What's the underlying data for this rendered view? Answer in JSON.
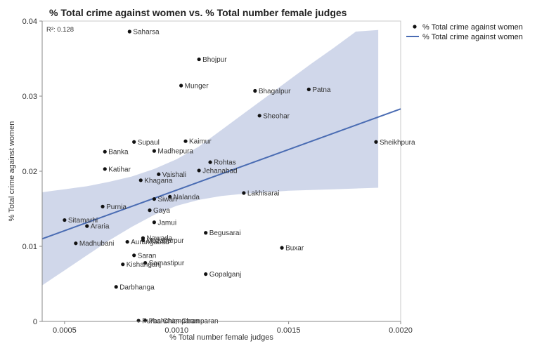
{
  "chart_data": {
    "type": "scatter",
    "title": "% Total crime against women vs. % Total number female judges",
    "xlabel": "% Total number female judges",
    "ylabel": "% Total crime against women",
    "xlim": [
      0.0004,
      0.002
    ],
    "ylim": [
      0,
      0.04
    ],
    "xticks": [
      "0.0005",
      "0.0010",
      "0.0015",
      "0.0020"
    ],
    "yticks": [
      "0",
      "0.01",
      "0.02",
      "0.03",
      "0.04"
    ],
    "r2_label": "R²: 0.128",
    "legend": {
      "position": "right",
      "items": [
        {
          "label": "% Total crime against women",
          "kind": "point"
        },
        {
          "label": "% Total crime against women",
          "kind": "line"
        }
      ]
    },
    "colors": {
      "points": "#111111",
      "fit_line": "#4a6cb3",
      "confidence_band": "#c8d0e6"
    },
    "fit": {
      "x": [
        0.0004,
        0.002
      ],
      "y": [
        0.011,
        0.0283
      ]
    },
    "confidence_band": {
      "x": [
        0.0004,
        0.00045,
        0.0005,
        0.00055,
        0.0006,
        0.0007,
        0.0008,
        0.0009,
        0.001,
        0.0011,
        0.0012,
        0.0013,
        0.0014,
        0.0015,
        0.0016,
        0.0017,
        0.0018,
        0.0019
      ],
      "upper": [
        0.0172,
        0.0174,
        0.0176,
        0.0178,
        0.018,
        0.0186,
        0.0193,
        0.0203,
        0.0216,
        0.0233,
        0.0255,
        0.0277,
        0.0299,
        0.0321,
        0.0343,
        0.0364,
        0.0386,
        0.0388
      ],
      "lower": [
        0.0048,
        0.0058,
        0.0068,
        0.0078,
        0.0088,
        0.0108,
        0.0126,
        0.0142,
        0.0154,
        0.0162,
        0.0167,
        0.017,
        0.0172,
        0.0174,
        0.0175,
        0.0176,
        0.0177,
        0.0178
      ]
    },
    "points": [
      {
        "label": "Saharsa",
        "x": 0.00079,
        "y": 0.0386
      },
      {
        "label": "Bhojpur",
        "x": 0.0011,
        "y": 0.0349
      },
      {
        "label": "Munger",
        "x": 0.00102,
        "y": 0.0314
      },
      {
        "label": "Bhagalpur",
        "x": 0.00135,
        "y": 0.0307
      },
      {
        "label": "Patna",
        "x": 0.00159,
        "y": 0.0309
      },
      {
        "label": "Sheohar",
        "x": 0.00137,
        "y": 0.0274
      },
      {
        "label": "Sheikhpura",
        "x": 0.00189,
        "y": 0.0239
      },
      {
        "label": "Supaul",
        "x": 0.00081,
        "y": 0.0239
      },
      {
        "label": "Kaimur",
        "x": 0.00104,
        "y": 0.024
      },
      {
        "label": "Banka",
        "x": 0.00068,
        "y": 0.0226
      },
      {
        "label": "Madhepura",
        "x": 0.0009,
        "y": 0.0227
      },
      {
        "label": "Rohtas",
        "x": 0.00115,
        "y": 0.0212
      },
      {
        "label": "Katihar",
        "x": 0.00068,
        "y": 0.0203
      },
      {
        "label": "Jehanabad",
        "x": 0.0011,
        "y": 0.0201
      },
      {
        "label": "Vaishali",
        "x": 0.00092,
        "y": 0.0196
      },
      {
        "label": "Khagaria",
        "x": 0.00084,
        "y": 0.0188
      },
      {
        "label": "Lakhisarai",
        "x": 0.0013,
        "y": 0.0171
      },
      {
        "label": "Nalanda",
        "x": 0.00097,
        "y": 0.0166
      },
      {
        "label": "Siwan",
        "x": 0.0009,
        "y": 0.0163
      },
      {
        "label": "Purnia",
        "x": 0.00067,
        "y": 0.0153
      },
      {
        "label": "Gaya",
        "x": 0.00088,
        "y": 0.0148
      },
      {
        "label": "Sitamarhi",
        "x": 0.0005,
        "y": 0.0135
      },
      {
        "label": "Jamui",
        "x": 0.0009,
        "y": 0.0132
      },
      {
        "label": "Araria",
        "x": 0.0006,
        "y": 0.0127
      },
      {
        "label": "Begusarai",
        "x": 0.00113,
        "y": 0.0118
      },
      {
        "label": "Nawada",
        "x": 0.00085,
        "y": 0.0111
      },
      {
        "label": "Muzaffarpur",
        "x": 0.00085,
        "y": 0.0108
      },
      {
        "label": "Aurangabad",
        "x": 0.00078,
        "y": 0.0106
      },
      {
        "label": "Madhubani",
        "x": 0.00055,
        "y": 0.0104
      },
      {
        "label": "Buxar",
        "x": 0.00147,
        "y": 0.0098
      },
      {
        "label": "Saran",
        "x": 0.00081,
        "y": 0.0088
      },
      {
        "label": "Samastipur",
        "x": 0.00086,
        "y": 0.0078
      },
      {
        "label": "Kishanganj",
        "x": 0.00076,
        "y": 0.0076
      },
      {
        "label": "Gopalganj",
        "x": 0.00113,
        "y": 0.0063
      },
      {
        "label": "Darbhanga",
        "x": 0.00073,
        "y": 0.0046
      },
      {
        "label": "Purba Champaran",
        "x": 0.00083,
        "y": 0.0001
      },
      {
        "label": "Pashchim Champaran",
        "x": 0.00086,
        "y": 0.0001
      }
    ]
  }
}
